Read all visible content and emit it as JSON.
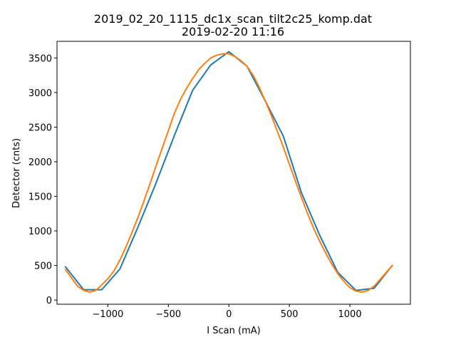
{
  "chart_data": {
    "type": "line",
    "title": "2019_02_20_1115_dc1x_scan_tilt2c25_komp.dat",
    "subtitle": "2019-02-20 11:16",
    "xlabel": "I Scan (mA)",
    "ylabel": "Detector (cnts)",
    "xlim": [
      -1420,
      1500
    ],
    "ylim": [
      -60,
      3740
    ],
    "xticks": [
      -1000,
      -500,
      0,
      500,
      1000
    ],
    "xtick_labels": [
      "−1000",
      "−500",
      "0",
      "500",
      "1000"
    ],
    "yticks": [
      0,
      500,
      1000,
      1500,
      2000,
      2500,
      3000,
      3500
    ],
    "ytick_labels": [
      "0",
      "500",
      "1000",
      "1500",
      "2000",
      "2500",
      "3000",
      "3500"
    ],
    "grid": false,
    "series": [
      {
        "color": "#1f77b4",
        "x": [
          -1350,
          -1200,
          -1050,
          -900,
          -750,
          -600,
          -450,
          -300,
          -150,
          0,
          150,
          300,
          450,
          600,
          750,
          900,
          1050,
          1200,
          1350
        ],
        "y": [
          480,
          150,
          150,
          450,
          1060,
          1700,
          2380,
          3030,
          3400,
          3590,
          3380,
          2880,
          2370,
          1550,
          940,
          400,
          140,
          170,
          500
        ]
      },
      {
        "color": "#ff7f0e",
        "x": [
          -1350,
          -1300,
          -1250,
          -1200,
          -1150,
          -1100,
          -1050,
          -1000,
          -950,
          -900,
          -850,
          -800,
          -750,
          -700,
          -650,
          -600,
          -550,
          -500,
          -450,
          -400,
          -350,
          -300,
          -250,
          -200,
          -150,
          -100,
          -50,
          0,
          50,
          100,
          150,
          200,
          250,
          300,
          350,
          400,
          450,
          500,
          550,
          600,
          650,
          700,
          750,
          800,
          850,
          900,
          950,
          1000,
          1050,
          1100,
          1150,
          1200,
          1250,
          1300,
          1350
        ],
        "y": [
          440,
          320,
          200,
          140,
          115,
          140,
          220,
          310,
          420,
          580,
          770,
          980,
          1200,
          1440,
          1690,
          1950,
          2200,
          2450,
          2700,
          2900,
          3060,
          3200,
          3330,
          3420,
          3500,
          3540,
          3560,
          3560,
          3520,
          3460,
          3380,
          3250,
          3080,
          2880,
          2670,
          2440,
          2210,
          1960,
          1720,
          1480,
          1250,
          1040,
          850,
          680,
          520,
          380,
          270,
          180,
          130,
          115,
          140,
          200,
          300,
          400,
          500
        ]
      }
    ]
  }
}
